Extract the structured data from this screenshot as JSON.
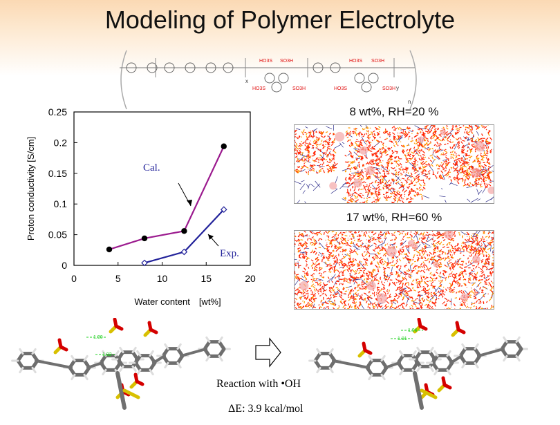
{
  "title": "Modeling of Polymer Electrolyte",
  "formula": {
    "groups": [
      "HO3S",
      "SO3H",
      "HO3S",
      "SO3H",
      "HO3S",
      "SO3H",
      "HO3S",
      "SO3H"
    ],
    "x": "x",
    "y": "y",
    "n": "n"
  },
  "chart_data": {
    "type": "line",
    "xlabel": "Water content　[wt%]",
    "ylabel": "Proton conductivity [S/cm]",
    "xlim": [
      0,
      20
    ],
    "ylim": [
      0,
      0.25
    ],
    "xticks": [
      "0",
      "5",
      "10",
      "15",
      "20"
    ],
    "yticks": [
      "0",
      "0.05",
      "0.1",
      "0.15",
      "0.2",
      "0.25"
    ],
    "series": [
      {
        "name": "Cal.",
        "color": "#9b1a8e",
        "marker": "filled-circle",
        "x": [
          4,
          8,
          12.5,
          17
        ],
        "y": [
          0.026,
          0.044,
          0.056,
          0.194
        ]
      },
      {
        "name": "Exp.",
        "color": "#22229a",
        "marker": "open-diamond",
        "x": [
          8,
          12.5,
          17
        ],
        "y": [
          0.004,
          0.022,
          0.091
        ]
      }
    ]
  },
  "snapshots": [
    {
      "label": "8 wt%, RH=20 %"
    },
    {
      "label": "17 wt%, RH=60 %"
    }
  ],
  "reaction": {
    "text": "Reaction with •OH",
    "energy": "ΔE:  3.9 kcal/mol",
    "hbond_labels": [
      "1.90",
      "1.92",
      "1.91",
      "1.96"
    ]
  },
  "colors": {
    "red_phase": "#ff2200",
    "orange_phase": "#ff9900",
    "network": "#2a2a88"
  }
}
